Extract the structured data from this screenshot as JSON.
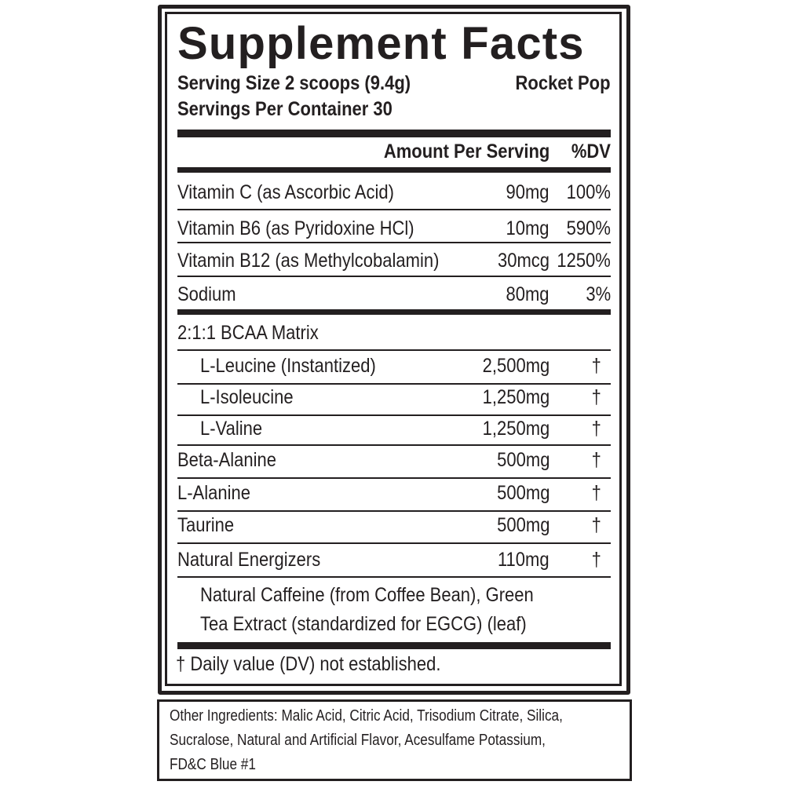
{
  "title": "Supplement Facts",
  "serving_size": "Serving Size 2 scoops (9.4g)",
  "servings_per_container": "Servings Per Container 30",
  "flavor": "Rocket Pop",
  "header": {
    "amount": "Amount Per Serving",
    "dv": "%DV"
  },
  "vitamins": [
    {
      "name": "Vitamin C (as Ascorbic Acid)",
      "amount": "90mg",
      "dv": "100%"
    },
    {
      "name": "Vitamin B6 (as Pyridoxine HCl)",
      "amount": "10mg",
      "dv": "590%"
    },
    {
      "name": "Vitamin B12 (as Methylcobalamin)",
      "amount": "30mcg",
      "dv": "1250%"
    },
    {
      "name": "Sodium",
      "amount": "80mg",
      "dv": "3%"
    }
  ],
  "blend_title": "2:1:1 BCAA Matrix",
  "ingredients": [
    {
      "name": "L-Leucine (Instantized)",
      "amount": "2,500mg",
      "dv": "†"
    },
    {
      "name": "L-Isoleucine",
      "amount": "1,250mg",
      "dv": "†"
    },
    {
      "name": "L-Valine",
      "amount": "1,250mg",
      "dv": "†"
    },
    {
      "name": "Beta-Alanine",
      "amount": "500mg",
      "dv": "†"
    },
    {
      "name": "L-Alanine",
      "amount": "500mg",
      "dv": "†"
    },
    {
      "name": "Taurine",
      "amount": "500mg",
      "dv": "†"
    },
    {
      "name": "Natural Energizers",
      "amount": "110mg",
      "dv": "†"
    }
  ],
  "energizers_detail": [
    "Natural Caffeine (from Coffee Bean), Green",
    "Tea Extract (standardized for EGCG) (leaf)"
  ],
  "footnote": "† Daily value (DV) not established.",
  "other_ingredients": [
    "Other Ingredients: Malic Acid, Citric Acid, Trisodium Citrate, Silica,",
    "Sucralose, Natural and Artificial Flavor, Acesulfame Potassium,",
    "FD&C Blue #1"
  ]
}
